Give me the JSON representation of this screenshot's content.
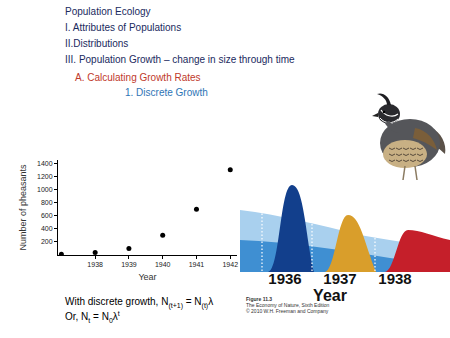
{
  "slide": {
    "heading": "Population Ecology",
    "outline": [
      "I. Attributes of Populations",
      "II.Distributions",
      "III. Population Growth – change in size through time"
    ],
    "section": "A. Calculating Growth Rates",
    "subsection": "1. Discrete Growth",
    "equations": [
      [
        {
          "text": "With discrete growth, N"
        },
        {
          "sub": "(t+1)"
        },
        {
          "text": " = N"
        },
        {
          "sub": "(t)"
        },
        {
          "text": "λ"
        }
      ],
      [
        {
          "text": "Or, N"
        },
        {
          "sub": "t"
        },
        {
          "text": " = N"
        },
        {
          "sub": "0"
        },
        {
          "text": "λ"
        },
        {
          "sup": "t"
        }
      ]
    ]
  },
  "chart_data": {
    "type": "scatter",
    "xlabel": "Year",
    "ylabel": "Number of pheasants",
    "x": [
      1937,
      1938,
      1939,
      1940,
      1941,
      1942
    ],
    "values": [
      10,
      40,
      100,
      300,
      700,
      1300
    ],
    "color": "#000000",
    "marker": "circle",
    "xlim": [
      1936.9,
      1942.2
    ],
    "ylim": [
      0,
      1450
    ],
    "xticks": [
      1938,
      1939,
      1940,
      1941,
      1942
    ],
    "yticks": [
      200,
      400,
      600,
      800,
      1000,
      1200,
      1400
    ],
    "grid": false
  },
  "figure": {
    "years": [
      "1936",
      "1937",
      "1938"
    ],
    "axis_label": "Year",
    "caption": [
      "Figure 11.3",
      "The Economy of Nature, Sixth Edition",
      "© 2010 W.H. Freeman and Company"
    ]
  }
}
